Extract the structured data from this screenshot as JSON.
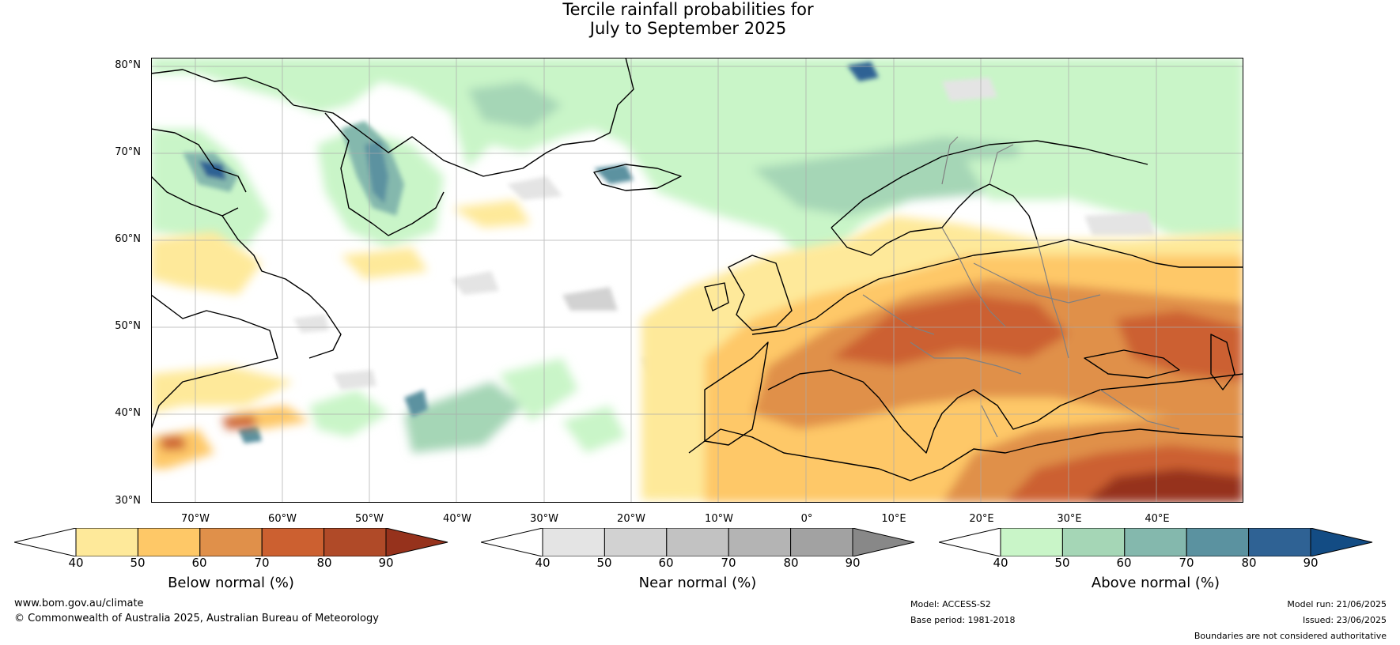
{
  "title": {
    "line1": "Tercile rainfall probabilities for",
    "line2": "July to September 2025"
  },
  "map": {
    "lat_labels": [
      "80°N",
      "70°N",
      "60°N",
      "50°N",
      "40°N",
      "30°N"
    ],
    "lon_labels": [
      "70°W",
      "60°W",
      "50°W",
      "40°W",
      "30°W",
      "20°W",
      "10°W",
      "0°",
      "10°E",
      "20°E",
      "30°E",
      "40°E"
    ]
  },
  "colorbars": [
    {
      "title": "Below normal (%)",
      "ticks": [
        "40",
        "50",
        "60",
        "70",
        "80",
        "90"
      ],
      "colors": [
        "#fee99a",
        "#fec867",
        "#e0904a",
        "#cc6030",
        "#b04a28",
        "#96321c"
      ],
      "left_color": "#ffffff"
    },
    {
      "title": "Near normal (%)",
      "ticks": [
        "40",
        "50",
        "60",
        "70",
        "80",
        "90"
      ],
      "colors": [
        "#e4e4e4",
        "#d2d2d2",
        "#c2c2c2",
        "#b4b4b4",
        "#a2a2a2",
        "#888888"
      ],
      "left_color": "#ffffff"
    },
    {
      "title": "Above normal (%)",
      "ticks": [
        "40",
        "50",
        "60",
        "70",
        "80",
        "90"
      ],
      "colors": [
        "#c9f5c8",
        "#a5d6b6",
        "#84b8ad",
        "#5b92a0",
        "#2f6294",
        "#134c84"
      ],
      "left_color": "#ffffff"
    }
  ],
  "footer": {
    "website": "www.bom.gov.au/climate",
    "copyright": "© Commonwealth of Australia 2025, Australian Bureau of Meteorology",
    "model": "Model: ACCESS-S2",
    "base_period": "Base period: 1981-2018",
    "model_run": "Model run: 21/06/2025",
    "issued": "Issued: 23/06/2025",
    "disclaimer": "Boundaries are not considered authoritative"
  }
}
